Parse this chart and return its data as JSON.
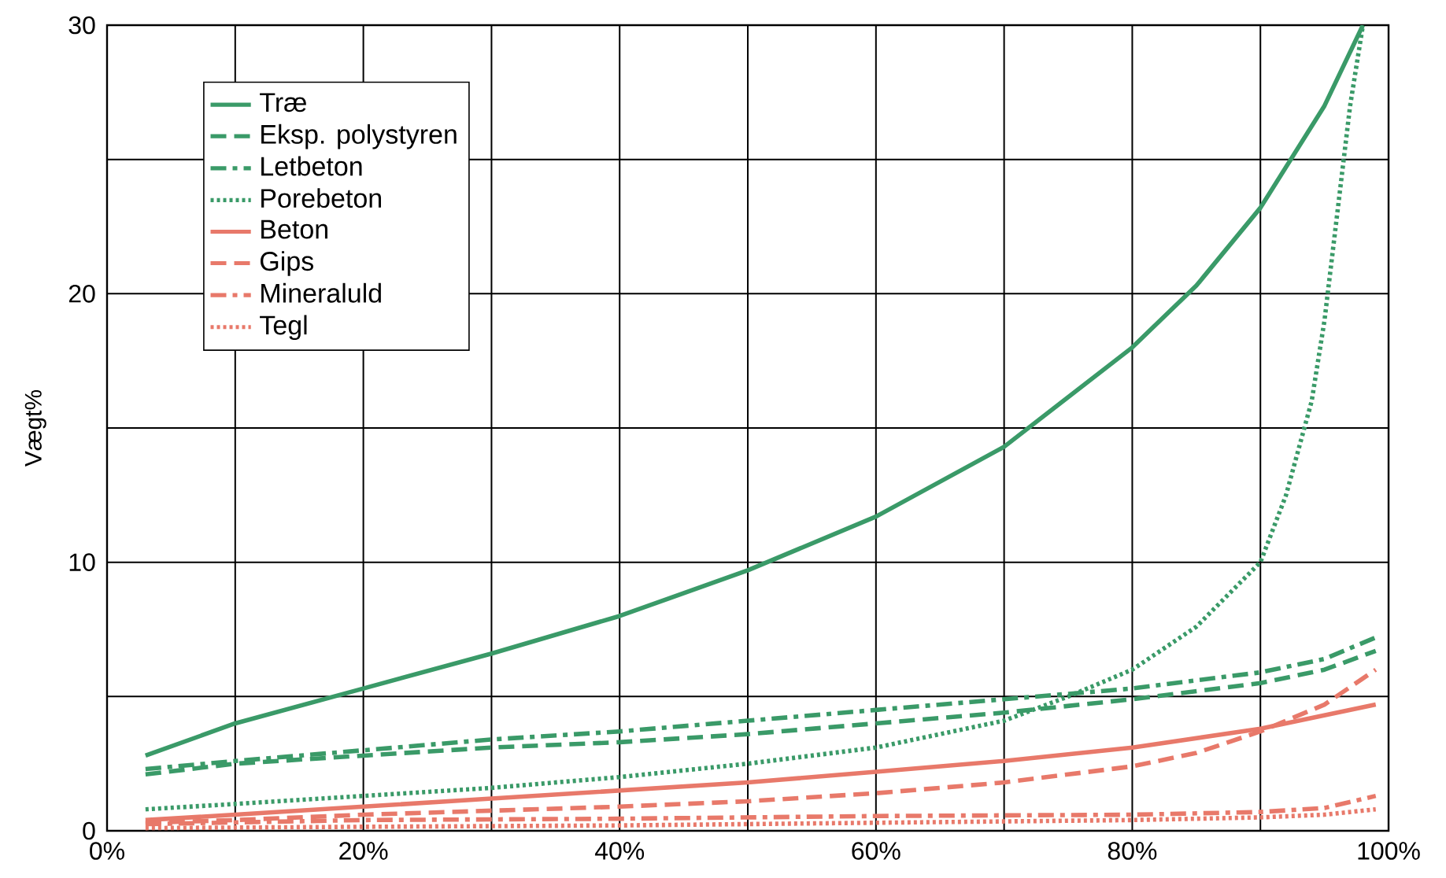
{
  "chart_data": {
    "type": "line",
    "ylabel": "Vægt%",
    "xlim": [
      0,
      100
    ],
    "ylim": [
      0,
      30
    ],
    "xticks": [
      {
        "value": 0,
        "label": "0%"
      },
      {
        "value": 10,
        "label": null
      },
      {
        "value": 20,
        "label": "20%"
      },
      {
        "value": 30,
        "label": null
      },
      {
        "value": 40,
        "label": "40%"
      },
      {
        "value": 50,
        "label": null
      },
      {
        "value": 60,
        "label": "60%"
      },
      {
        "value": 70,
        "label": null
      },
      {
        "value": 80,
        "label": "80%"
      },
      {
        "value": 90,
        "label": null
      },
      {
        "value": 100,
        "label": "100%"
      }
    ],
    "yticks": [
      0,
      {
        "value": 5,
        "label": null
      },
      10,
      {
        "value": 15,
        "label": null
      },
      20,
      {
        "value": 25,
        "label": null
      },
      30
    ],
    "grid": true,
    "legend": "top left",
    "marker": "none",
    "series": [
      {
        "name": "Træ",
        "color": "#3a9a68",
        "line_style": "solid",
        "x": [
          3,
          10,
          20,
          30,
          40,
          50,
          60,
          70,
          80,
          85,
          90,
          95,
          98
        ],
        "values": [
          2.8,
          4.0,
          5.3,
          6.6,
          8.0,
          9.7,
          11.7,
          14.3,
          18.0,
          20.3,
          23.2,
          27.0,
          30.0
        ]
      },
      {
        "name": "Eksp. polystyren",
        "color": "#3a9a68",
        "line_style": "dashed",
        "x": [
          3,
          10,
          20,
          30,
          40,
          50,
          60,
          70,
          80,
          90,
          95,
          99
        ],
        "values": [
          2.1,
          2.5,
          2.8,
          3.1,
          3.3,
          3.6,
          4.0,
          4.4,
          4.9,
          5.5,
          6.0,
          6.7
        ]
      },
      {
        "name": "Letbeton",
        "color": "#3a9a68",
        "line_style": "dashdot",
        "x": [
          3,
          10,
          20,
          30,
          40,
          50,
          60,
          70,
          80,
          90,
          95,
          99
        ],
        "values": [
          2.3,
          2.6,
          3.0,
          3.4,
          3.7,
          4.1,
          4.5,
          4.9,
          5.3,
          5.9,
          6.4,
          7.2
        ]
      },
      {
        "name": "Porebeton",
        "color": "#3a9a68",
        "line_style": "dotted",
        "x": [
          3,
          10,
          20,
          30,
          40,
          50,
          60,
          70,
          75,
          80,
          85,
          90,
          92,
          94,
          95,
          96,
          97,
          98
        ],
        "values": [
          0.8,
          1.0,
          1.3,
          1.6,
          2.0,
          2.5,
          3.1,
          4.1,
          5.0,
          6.0,
          7.6,
          10.0,
          12.5,
          16.0,
          19.0,
          23.0,
          27.0,
          30.0
        ]
      },
      {
        "name": "Beton",
        "color": "#e8796a",
        "line_style": "solid",
        "x": [
          3,
          10,
          20,
          30,
          40,
          50,
          60,
          70,
          80,
          90,
          99
        ],
        "values": [
          0.4,
          0.6,
          0.9,
          1.2,
          1.5,
          1.8,
          2.2,
          2.6,
          3.1,
          3.8,
          4.7
        ]
      },
      {
        "name": "Gips",
        "color": "#e8796a",
        "line_style": "dashed",
        "x": [
          3,
          10,
          20,
          30,
          40,
          50,
          60,
          70,
          80,
          85,
          90,
          95,
          99
        ],
        "values": [
          0.3,
          0.4,
          0.6,
          0.75,
          0.9,
          1.1,
          1.4,
          1.8,
          2.4,
          2.9,
          3.7,
          4.7,
          6.0
        ]
      },
      {
        "name": "Mineraluld",
        "color": "#e8796a",
        "line_style": "dashdot",
        "x": [
          3,
          20,
          40,
          60,
          80,
          90,
          95,
          99
        ],
        "values": [
          0.25,
          0.4,
          0.45,
          0.55,
          0.6,
          0.7,
          0.85,
          1.3
        ]
      },
      {
        "name": "Tegl",
        "color": "#e8796a",
        "line_style": "dotted",
        "x": [
          3,
          20,
          40,
          60,
          80,
          90,
          95,
          99
        ],
        "values": [
          0.1,
          0.15,
          0.2,
          0.3,
          0.4,
          0.5,
          0.6,
          0.8
        ]
      }
    ]
  }
}
